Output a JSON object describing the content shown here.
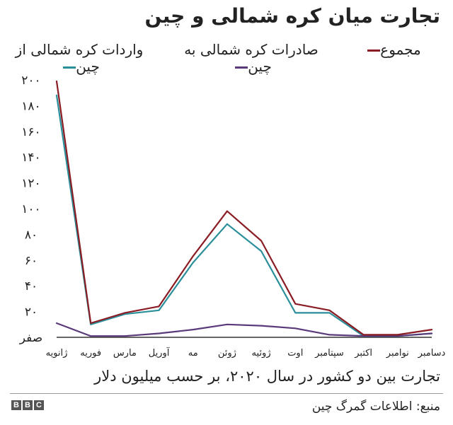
{
  "colors": {
    "total": "#8a1c24",
    "exports": "#5a3a7a",
    "imports": "#2a8f9a",
    "axis": "#333333"
  },
  "chart_data": {
    "type": "line",
    "title": "تجارت میان کره شمالی و چین",
    "subtitle": "تجارت بین دو کشور در سال ۲۰۲۰، بر حسب میلیون دلار",
    "source": "منبع: اطلاعات گمرگ چین",
    "categories": [
      "ژانویه",
      "فوریه",
      "مارس",
      "آوریل",
      "مه",
      "ژوئن",
      "ژوئیه",
      "اوت",
      "سپتامبر",
      "اکتبر",
      "نوامبر",
      "دسامبر"
    ],
    "y_ticks": [
      {
        "value": 0,
        "label": "صفر"
      },
      {
        "value": 20,
        "label": "۲۰"
      },
      {
        "value": 40,
        "label": "۴۰"
      },
      {
        "value": 60,
        "label": "۶۰"
      },
      {
        "value": 80,
        "label": "۸۰"
      },
      {
        "value": 100,
        "label": "۱۰۰"
      },
      {
        "value": 120,
        "label": "۱۲۰"
      },
      {
        "value": 140,
        "label": "۱۴۰"
      },
      {
        "value": 160,
        "label": "۱۶۰"
      },
      {
        "value": 180,
        "label": "۱۸۰"
      },
      {
        "value": 200,
        "label": "۲۰۰"
      }
    ],
    "ylim": [
      0,
      200
    ],
    "series": [
      {
        "name": "مجموع",
        "color_key": "total",
        "values": [
          199,
          11,
          19,
          24,
          63,
          98,
          75,
          26,
          21,
          2,
          2,
          6
        ]
      },
      {
        "name": "صادرات کره شمالی به چین",
        "color_key": "exports",
        "values": [
          11,
          1,
          1,
          3,
          6,
          10,
          9,
          7,
          2,
          1,
          1,
          3
        ]
      },
      {
        "name": "واردات کره شمالی از چین",
        "color_key": "imports",
        "values": [
          188,
          10,
          18,
          21,
          58,
          88,
          67,
          19,
          19,
          1,
          1,
          3
        ]
      }
    ]
  },
  "brand": {
    "letters": [
      "B",
      "B",
      "C"
    ]
  }
}
